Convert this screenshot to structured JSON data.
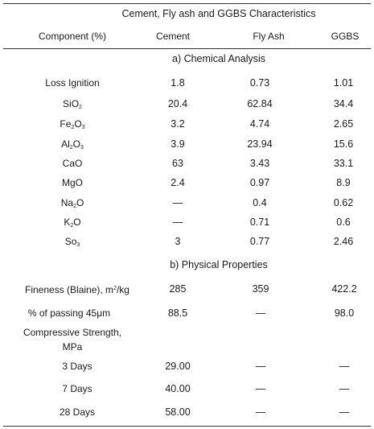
{
  "title": "Cement, Fly ash and GGBS Characteristics",
  "headers": {
    "component": "Component (%)",
    "cement": "Cement",
    "flyash": "Fly Ash",
    "ggbs": "GGBS"
  },
  "section_a": "a) Chemical Analysis",
  "section_b": "b) Physical Properties",
  "chemical_rows": [
    {
      "label": "Loss Ignition",
      "cement": "1.8",
      "flyash": "0.73",
      "ggbs": "1.01"
    },
    {
      "label_pre": "SiO",
      "label_sub": "2",
      "label_post": "",
      "cement": "20.4",
      "flyash": "62.84",
      "ggbs": "34.4"
    },
    {
      "label_pre": "Fe",
      "label_sub": "2",
      "label_mid": "O",
      "label_sub2": "3",
      "cement": "3.2",
      "flyash": "4.74",
      "ggbs": "2.65"
    },
    {
      "label_pre": "Al",
      "label_sub": "2",
      "label_mid": "O",
      "label_sub2": "3",
      "cement": "3.9",
      "flyash": "23.94",
      "ggbs": "15.6"
    },
    {
      "label": "CaO",
      "cement": "63",
      "flyash": "3.43",
      "ggbs": "33.1"
    },
    {
      "label": "MgO",
      "cement": "2.4",
      "flyash": "0.97",
      "ggbs": "8.9"
    },
    {
      "label_pre": "Na",
      "label_sub": "2",
      "label_mid": "O",
      "cement": "—",
      "flyash": "0.4",
      "ggbs": "0.62"
    },
    {
      "label_pre": "K",
      "label_sub": "2",
      "label_mid": "O",
      "cement": "—",
      "flyash": "0.71",
      "ggbs": "0.6"
    },
    {
      "label_pre": "So",
      "label_sub": "3",
      "cement": "3",
      "flyash": "0.77",
      "ggbs": "2.46"
    }
  ],
  "physical_rows": [
    {
      "label_pre": "Fineness (Blaine), m",
      "label_sup": "2",
      "label_post": "/kg",
      "cement": "285",
      "flyash": "359",
      "ggbs": "422.2"
    },
    {
      "label": "% of passing 45μm",
      "cement": "88.5",
      "flyash": "—",
      "ggbs": "98.0"
    }
  ],
  "strength": {
    "label_line1": "Compressive Strength,",
    "label_line2": "MPa",
    "rows": [
      {
        "label": "3 Days",
        "cement": "29.00",
        "flyash": "—",
        "ggbs": "—"
      },
      {
        "label": "7 Days",
        "cement": "40.00",
        "flyash": "—",
        "ggbs": "—"
      },
      {
        "label": "28 Days",
        "cement": "58.00",
        "flyash": "—",
        "ggbs": "—"
      }
    ]
  }
}
